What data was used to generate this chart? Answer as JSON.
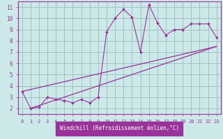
{
  "xlabel": "Windchill (Refroidissement éolien,°C)",
  "background_color": "#cce8e8",
  "line_color": "#993399",
  "grid_color": "#99bbbb",
  "x_main": [
    0,
    1,
    2,
    3,
    4,
    5,
    6,
    7,
    8,
    9,
    10,
    11,
    12,
    13,
    14,
    15,
    16,
    17,
    18,
    19,
    20,
    21,
    22,
    23
  ],
  "y_main": [
    3.5,
    2.0,
    2.1,
    3.0,
    2.8,
    2.7,
    2.5,
    2.8,
    2.5,
    3.0,
    8.8,
    10.0,
    10.8,
    10.1,
    7.0,
    11.2,
    9.6,
    8.5,
    9.0,
    9.0,
    9.5,
    9.5,
    9.5,
    8.3
  ],
  "upper_line": [
    [
      0,
      3.5
    ],
    [
      23,
      7.5
    ]
  ],
  "lower_line": [
    [
      1,
      2.0
    ],
    [
      23,
      7.5
    ]
  ],
  "xlim": [
    -0.5,
    23.5
  ],
  "ylim": [
    1.5,
    11.5
  ],
  "yticks": [
    2,
    3,
    4,
    5,
    6,
    7,
    8,
    9,
    10,
    11
  ],
  "xticks": [
    0,
    1,
    2,
    3,
    4,
    5,
    6,
    7,
    8,
    9,
    10,
    11,
    12,
    13,
    14,
    15,
    16,
    17,
    18,
    19,
    20,
    21,
    22,
    23
  ],
  "tick_fontsize": 5.0,
  "xlabel_fontsize": 5.5
}
